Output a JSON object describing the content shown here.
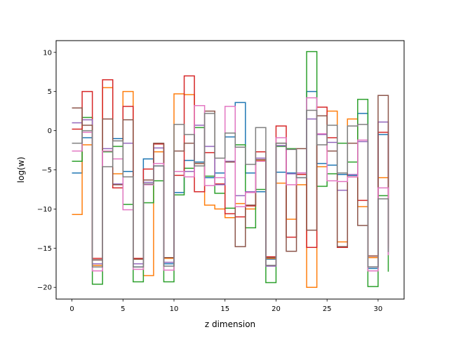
{
  "chart_data": {
    "type": "line",
    "step": "post",
    "title": "",
    "xlabel": "z dimension",
    "ylabel": "log(w)",
    "xlim": [
      -1.55,
      32.55
    ],
    "ylim": [
      -21.5,
      11.5
    ],
    "xticks": [
      0,
      5,
      10,
      15,
      20,
      25,
      30
    ],
    "yticks": [
      -20,
      -15,
      -10,
      -5,
      0,
      5,
      10
    ],
    "x": [
      0,
      1,
      2,
      3,
      4,
      5,
      6,
      7,
      8,
      9,
      10,
      11,
      12,
      13,
      14,
      15,
      16,
      17,
      18,
      19,
      20,
      21,
      22,
      23,
      24,
      25,
      26,
      27,
      28,
      29,
      30,
      31
    ],
    "grid": false,
    "legend": "none",
    "series": [
      {
        "color": "#1f77b4",
        "values": [
          -5.4,
          -0.9,
          -16.5,
          -2.3,
          -1.0,
          -5.2,
          -17.4,
          -3.6,
          -4.5,
          -17.0,
          -7.9,
          -3.8,
          -4.0,
          -6.0,
          -5.4,
          -0.8,
          3.6,
          -5.4,
          -7.8,
          -16.4,
          -5.3,
          -5.4,
          -6.0,
          5.0,
          -4.2,
          -4.4,
          -5.6,
          -5.7,
          2.2,
          -17.6,
          -0.5,
          -15.2
        ]
      },
      {
        "color": "#ff7f0e",
        "values": [
          -10.7,
          -1.8,
          -17.2,
          5.5,
          -5.5,
          5.0,
          -16.4,
          -18.5,
          -2.7,
          -16.3,
          4.7,
          4.6,
          -4.2,
          -9.5,
          -10.0,
          -11.1,
          -9.3,
          -10.0,
          -3.8,
          -16.3,
          -6.7,
          -11.3,
          -6.9,
          -20.0,
          -4.6,
          2.5,
          -14.2,
          1.5,
          -9.7,
          -16.2,
          -6.0,
          -15.0
        ]
      },
      {
        "color": "#2ca02c",
        "values": [
          -3.9,
          1.7,
          -19.6,
          -2.7,
          -2.0,
          -9.4,
          -19.3,
          -9.2,
          -6.4,
          -19.3,
          -8.2,
          -4.8,
          0.4,
          -5.8,
          -8.0,
          -9.9,
          -1.8,
          -12.4,
          -7.5,
          -19.4,
          -2.0,
          -2.3,
          -2.3,
          10.1,
          -7.1,
          -5.5,
          -1.6,
          -4.0,
          4.0,
          -19.9,
          -8.3,
          -18.0
        ]
      },
      {
        "color": "#d62728",
        "values": [
          0.2,
          5.0,
          -16.3,
          6.5,
          -7.3,
          3.1,
          -16.3,
          -4.9,
          -1.7,
          -16.2,
          -5.7,
          7.0,
          -7.8,
          -2.8,
          -6.8,
          -10.6,
          -11.0,
          -9.6,
          -2.7,
          -16.1,
          0.6,
          -13.6,
          -5.6,
          -14.9,
          3.0,
          -0.9,
          -14.9,
          -5.9,
          -8.9,
          -16.0,
          -0.2,
          -14.8
        ]
      },
      {
        "color": "#9467bd",
        "values": [
          1.0,
          1.4,
          -17.0,
          -2.3,
          -6.8,
          -1.6,
          -17.0,
          -6.6,
          -2.2,
          -16.8,
          -5.2,
          -5.2,
          0.7,
          -2.0,
          -6.9,
          -3.9,
          -8.3,
          -7.8,
          -3.5,
          -17.3,
          -1.9,
          -5.5,
          -5.4,
          1.5,
          -0.5,
          -1.5,
          -7.6,
          -5.6,
          -1.4,
          -17.4,
          1.1,
          -15.8
        ]
      },
      {
        "color": "#8c564b",
        "values": [
          2.9,
          0.7,
          -16.5,
          1.5,
          -6.9,
          1.4,
          -16.4,
          -6.3,
          -1.6,
          -16.2,
          -2.6,
          -1.6,
          -4.2,
          2.5,
          -3.5,
          -4.0,
          -14.8,
          -9.5,
          -3.7,
          -16.2,
          -1.6,
          -15.4,
          -2.3,
          -12.7,
          1.9,
          -2.6,
          -14.8,
          -1.6,
          -12.1,
          -16.0,
          4.5,
          -14.4
        ]
      },
      {
        "color": "#e377c2",
        "values": [
          -2.6,
          -0.2,
          -17.9,
          -2.6,
          -3.6,
          -10.1,
          -17.7,
          -6.9,
          -4.2,
          -17.8,
          -5.2,
          -5.9,
          3.2,
          -7.0,
          -6.0,
          3.1,
          -9.7,
          -7.9,
          -3.9,
          -17.2,
          -0.9,
          -6.9,
          -5.4,
          4.2,
          -0.4,
          -6.4,
          -6.5,
          -5.9,
          -1.2,
          -17.9,
          -7.3,
          -15.9
        ]
      },
      {
        "color": "#7f7f7f",
        "values": [
          -1.6,
          0.0,
          -17.4,
          -4.6,
          -1.3,
          -5.9,
          -17.4,
          -6.8,
          -4.5,
          -17.3,
          0.8,
          -0.5,
          -4.5,
          2.2,
          -3.5,
          -0.3,
          -2.1,
          -4.3,
          0.4,
          -17.2,
          -1.6,
          -2.4,
          -6.0,
          2.6,
          -1.8,
          0.7,
          -5.4,
          0.6,
          0.8,
          -17.4,
          -8.7,
          -15.5
        ]
      }
    ]
  }
}
